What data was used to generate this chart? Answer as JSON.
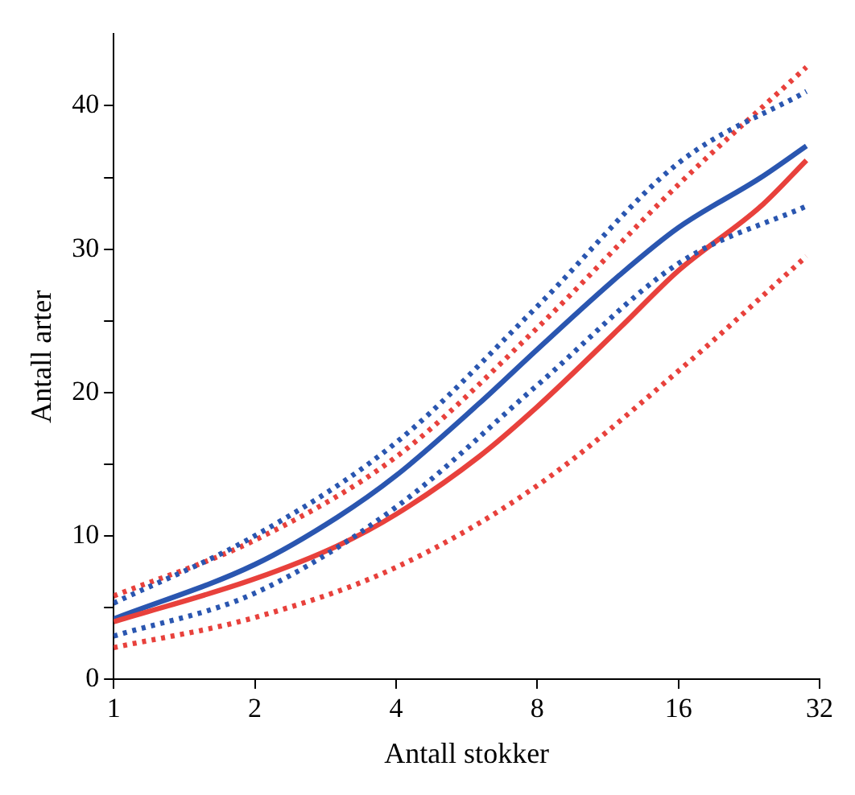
{
  "chart_data": {
    "type": "line",
    "xlabel": "Antall stokker",
    "ylabel": "Antall arter",
    "log": "x",
    "xlim": [
      1,
      32
    ],
    "xticks": [
      1,
      2,
      4,
      8,
      16,
      32
    ],
    "ylim": [
      0,
      45
    ],
    "yticks": [
      0,
      {
        "value": 5,
        "label": null
      },
      10,
      {
        "value": 15,
        "label": null
      },
      20,
      {
        "value": 25,
        "label": null
      },
      30,
      {
        "value": 35,
        "label": null
      },
      40
    ],
    "grid": false,
    "legend": false,
    "marker": "none",
    "series": [
      {
        "color": "#2a56b0",
        "line_style": "dotted",
        "x": [
          1,
          2,
          4,
          8,
          16,
          30
        ],
        "values": [
          5.3,
          10,
          16.5,
          26,
          36,
          41
        ]
      },
      {
        "color": "#2a56b0",
        "line_style": "dotted",
        "x": [
          1,
          2,
          4,
          8,
          16,
          30
        ],
        "values": [
          3,
          6,
          12,
          20.5,
          29,
          33
        ]
      },
      {
        "color": "#e8413c",
        "line_style": "dotted",
        "x": [
          1,
          2,
          4,
          8,
          16,
          30
        ],
        "values": [
          5.8,
          9.7,
          15.5,
          24.5,
          34.5,
          42.7
        ]
      },
      {
        "color": "#e8413c",
        "line_style": "dotted",
        "x": [
          1,
          2,
          4,
          8,
          16,
          30
        ],
        "values": [
          2.2,
          4.3,
          7.8,
          13.5,
          21.5,
          29.5
        ]
      },
      {
        "color": "#e8413c",
        "line_style": "solid",
        "x": [
          1,
          2,
          3,
          4,
          6,
          8,
          12,
          16,
          24,
          30
        ],
        "values": [
          4,
          7,
          9.3,
          11.5,
          15.5,
          19,
          24.5,
          28.5,
          33,
          36.2
        ]
      },
      {
        "color": "#2a56b0",
        "line_style": "solid",
        "x": [
          1,
          2,
          3,
          4,
          6,
          8,
          12,
          16,
          24,
          30
        ],
        "values": [
          4.2,
          8,
          11.3,
          14.2,
          19.2,
          23,
          28.2,
          31.5,
          35,
          37.2
        ]
      }
    ]
  }
}
